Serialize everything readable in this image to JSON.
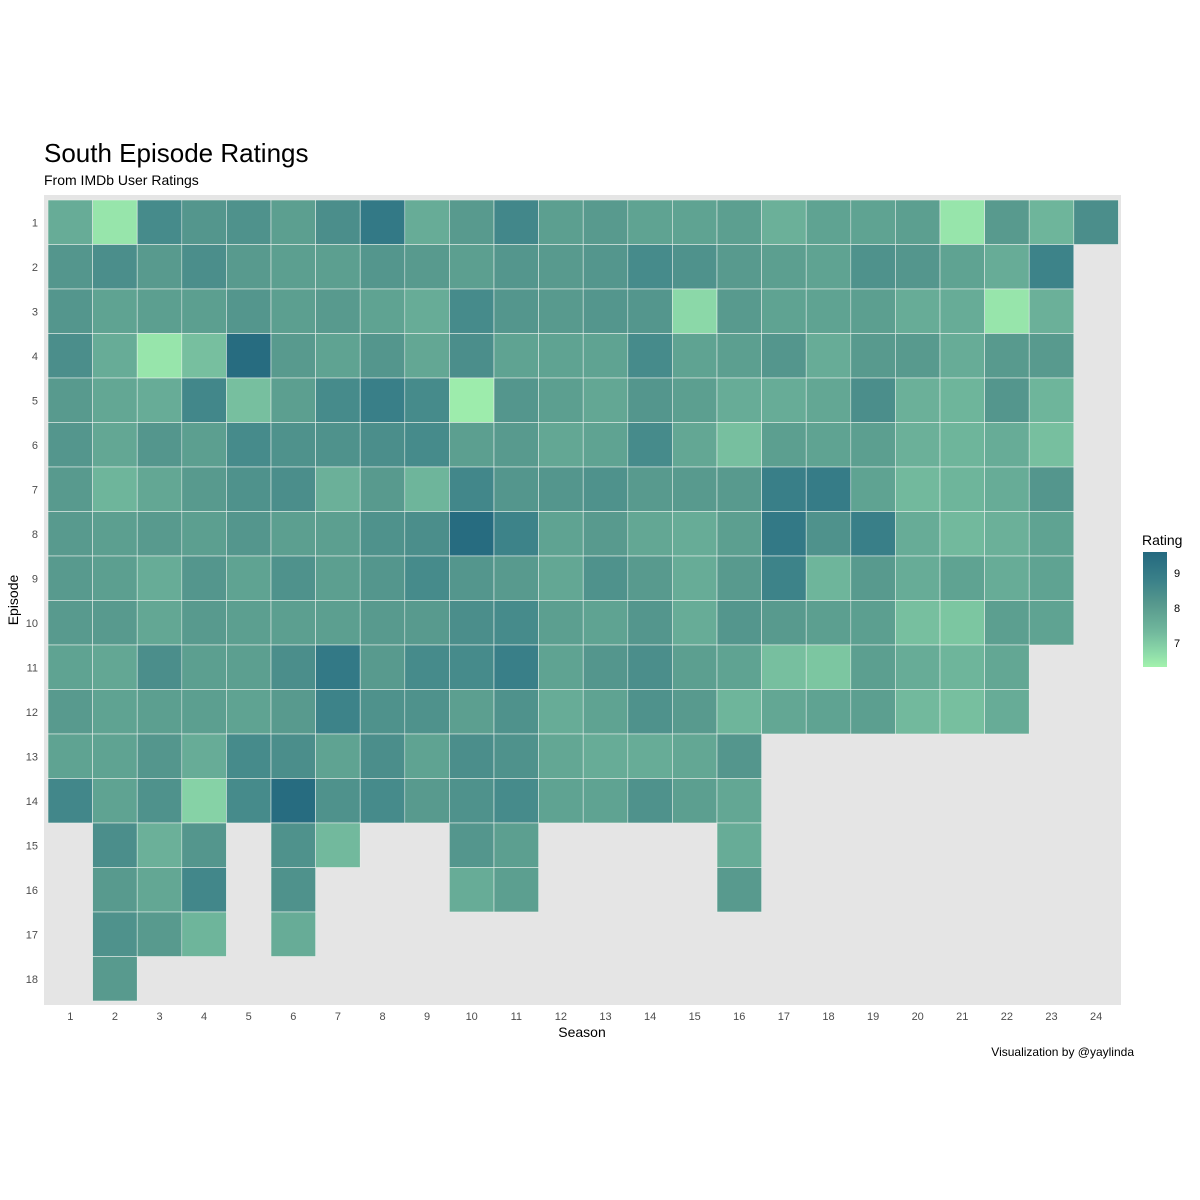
{
  "chart_data": {
    "type": "heatmap",
    "title": "South Episode Ratings",
    "subtitle": "From IMDb User Ratings",
    "xlabel": "Season",
    "ylabel": "Episode",
    "caption": "Visualization by @yaylinda",
    "legend": {
      "title": "Rating",
      "position": "right",
      "ticks": [
        9,
        8,
        7
      ],
      "range": [
        6.4,
        9.4
      ]
    },
    "x_ticks": [
      "1",
      "2",
      "3",
      "4",
      "5",
      "6",
      "7",
      "8",
      "9",
      "10",
      "11",
      "12",
      "13",
      "14",
      "15",
      "16",
      "17",
      "18",
      "19",
      "20",
      "21",
      "22",
      "23",
      "24"
    ],
    "y_ticks": [
      "1",
      "2",
      "3",
      "4",
      "5",
      "6",
      "7",
      "8",
      "9",
      "10",
      "11",
      "12",
      "13",
      "14",
      "15",
      "16",
      "17",
      "18"
    ],
    "color_low": "#a3f2ad",
    "color_high": "#24697f",
    "background": "#e5e5e5",
    "ratings": [
      [
        7.6,
        8.1,
        8.1,
        8.3,
        8.0,
        8.1,
        8.0,
        8.0,
        8.0,
        8.0,
        7.8,
        8.0,
        7.8,
        8.5
      ],
      [
        6.6,
        8.3,
        7.8,
        7.6,
        7.7,
        7.7,
        7.4,
        7.9,
        7.9,
        8.0,
        7.7,
        7.8,
        7.8,
        7.8,
        8.3,
        8.0,
        8.2,
        8.0
      ],
      [
        8.4,
        8.0,
        7.9,
        6.6,
        7.6,
        8.1,
        7.7,
        8.0,
        7.6,
        7.7,
        8.3,
        7.9,
        8.1,
        8.2,
        7.5,
        7.7,
        8.0
      ],
      [
        8.1,
        8.3,
        7.9,
        7.2,
        8.5,
        7.9,
        8.0,
        7.9,
        8.1,
        8.0,
        7.9,
        7.9,
        7.6,
        6.9,
        8.1,
        8.5,
        7.4
      ],
      [
        8.2,
        8.0,
        8.1,
        9.3,
        7.2,
        8.4,
        8.2,
        8.1,
        7.8,
        7.9,
        7.9,
        7.8,
        8.4,
        8.4
      ],
      [
        7.9,
        7.9,
        7.9,
        8.0,
        7.9,
        8.2,
        8.3,
        7.9,
        8.2,
        7.9,
        8.3,
        8.0,
        8.3,
        9.3,
        8.2,
        8.2,
        7.6
      ],
      [
        8.3,
        7.9,
        8.0,
        7.8,
        8.4,
        8.2,
        7.5,
        7.9,
        7.9,
        7.9,
        8.9,
        8.6,
        7.8,
        8.2,
        7.3
      ],
      [
        8.9,
        8.1,
        7.8,
        8.1,
        8.7,
        8.3,
        8.0,
        8.2,
        8.1,
        8.0,
        8.0,
        8.2,
        8.3,
        8.4
      ],
      [
        7.6,
        8.0,
        7.6,
        7.7,
        8.4,
        8.4,
        7.4,
        8.3,
        8.4,
        8.0,
        8.4,
        8.2,
        7.8,
        8.0
      ],
      [
        8.0,
        7.9,
        8.4,
        8.3,
        6.5,
        7.9,
        8.5,
        9.3,
        8.1,
        8.3,
        8.4,
        7.9,
        8.3,
        8.2,
        8.1,
        7.6
      ],
      [
        8.5,
        8.1,
        8.1,
        7.8,
        8.1,
        8.0,
        8.1,
        8.6,
        8.0,
        8.4,
        8.7,
        8.2,
        8.2,
        8.4,
        7.9,
        7.9
      ],
      [
        7.9,
        8.0,
        8.0,
        7.8,
        7.9,
        7.7,
        8.1,
        7.8,
        7.7,
        7.9,
        7.8,
        7.6,
        7.7,
        7.8
      ],
      [
        8.0,
        8.1,
        8.1,
        7.8,
        7.7,
        7.8,
        8.2,
        8.0,
        8.2,
        7.8,
        8.1,
        7.8,
        7.6,
        7.8
      ],
      [
        7.8,
        8.4,
        8.1,
        8.4,
        8.1,
        8.4,
        8.0,
        7.7,
        8.0,
        8.1,
        8.3,
        8.2,
        7.6,
        8.2
      ],
      [
        7.8,
        8.2,
        6.8,
        7.8,
        7.9,
        7.7,
        8.0,
        7.6,
        7.6,
        7.6,
        7.9,
        8.0,
        7.7,
        7.9
      ],
      [
        7.9,
        8.0,
        8.0,
        7.9,
        7.6,
        7.2,
        8.0,
        7.9,
        8.0,
        8.1,
        7.8,
        7.4,
        8.1,
        7.7,
        7.6,
        8.0
      ],
      [
        7.5,
        7.9,
        7.8,
        8.1,
        7.6,
        7.9,
        8.7,
        8.9,
        8.6,
        8.0,
        7.2,
        7.7
      ],
      [
        7.8,
        7.8,
        7.8,
        7.6,
        7.7,
        7.8,
        8.8,
        8.2,
        7.4,
        7.9,
        7.1,
        7.8
      ],
      [
        7.8,
        8.2,
        7.9,
        8.0,
        8.3,
        7.9,
        7.8,
        8.7,
        8.0,
        7.9,
        7.9,
        7.9
      ],
      [
        7.9,
        8.1,
        7.6,
        8.0,
        7.5,
        7.5,
        7.3,
        7.6,
        7.6,
        7.2,
        7.6,
        7.3
      ],
      [
        6.6,
        7.8,
        7.6,
        7.6,
        7.4,
        7.4,
        7.4,
        7.3,
        7.8,
        7.1,
        7.4,
        7.2
      ],
      [
        8.0,
        7.6,
        6.6,
        8.0,
        8.1,
        7.6,
        7.6,
        7.5,
        7.6,
        7.9,
        7.7,
        7.6
      ],
      [
        7.4,
        8.6,
        7.5,
        8.0,
        7.4,
        7.2,
        8.1,
        7.8,
        7.8,
        7.8
      ],
      [
        8.3
      ]
    ]
  }
}
